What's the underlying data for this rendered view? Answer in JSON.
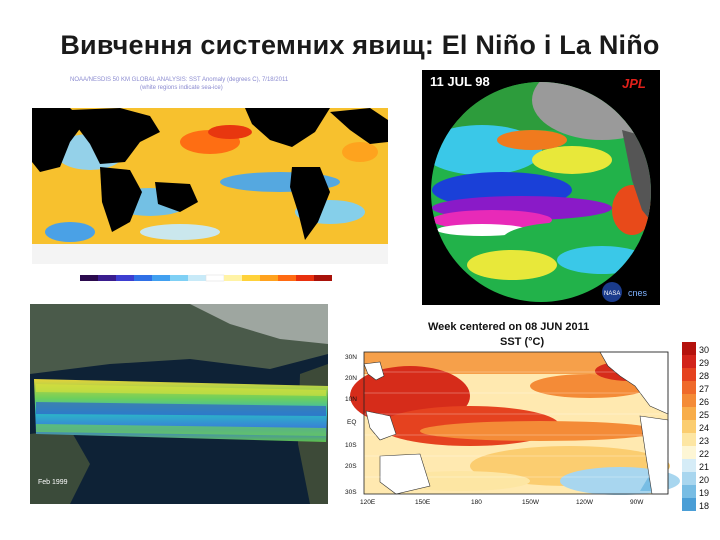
{
  "slide": {
    "title": "Вивчення системних явищ: El Niño і La Niño"
  },
  "panel_sst_map": {
    "header_line1": "NOAA/NESDIS 50 KM GLOBAL ANALYSIS: SST Anomaly (degrees C), 7/18/2011",
    "header_line2": "(white regions indicate sea-ice)",
    "colorbar_colors": [
      "#2b0a4d",
      "#3a1d8e",
      "#3d3ed1",
      "#2f70e6",
      "#41a0f0",
      "#7fd0f5",
      "#c8eaf8",
      "#ffffff",
      "#fff3a6",
      "#ffd23a",
      "#ffa21e",
      "#ff6a12",
      "#e8300e",
      "#a8120a"
    ]
  },
  "panel_globe": {
    "date": "11 JUL 98",
    "agency": "JPL",
    "logo_1": "NASA",
    "logo_2": "cnes"
  },
  "panel_3d": {
    "caption": "Feb 1999"
  },
  "panel_sst_chart": {
    "title_line1": "Week centered on 08 JUN 2011",
    "title_line2": "SST (°C)",
    "y_ticks": [
      "30N",
      "20N",
      "10N",
      "EQ",
      "10S",
      "20S",
      "30S"
    ],
    "x_ticks": [
      "120E",
      "150E",
      "180",
      "150W",
      "120W",
      "90W"
    ],
    "colorbar_values": [
      "30",
      "29",
      "28",
      "27",
      "26",
      "25",
      "24",
      "23",
      "22",
      "21",
      "20",
      "19",
      "18"
    ],
    "colorbar_colors": [
      "#b4120d",
      "#d2231a",
      "#e5421f",
      "#ef6a2b",
      "#f48b37",
      "#f8ad4a",
      "#fbcd70",
      "#fde6a3",
      "#fdf6d5",
      "#d5ecf7",
      "#a8d6ef",
      "#78bde4",
      "#4a9ed6"
    ]
  }
}
